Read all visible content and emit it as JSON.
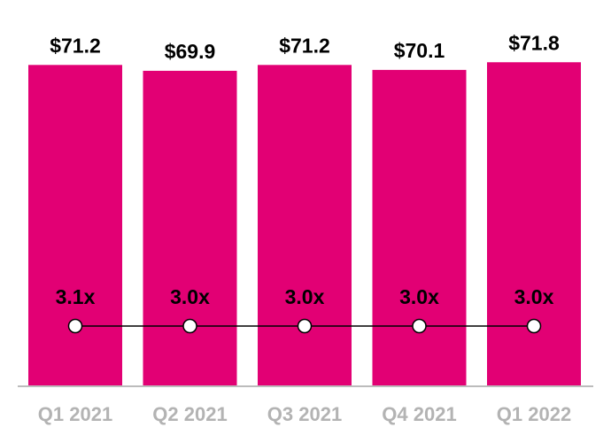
{
  "chart_data": {
    "type": "bar",
    "categories": [
      "Q1 2021",
      "Q2 2021",
      "Q3 2021",
      "Q4 2021",
      "Q1 2022"
    ],
    "series": [
      {
        "type": "bar",
        "values": [
          71.2,
          69.9,
          71.2,
          70.1,
          71.8
        ],
        "data_labels": [
          "$71.2",
          "$69.9",
          "$71.2",
          "$70.1",
          "$71.8"
        ]
      },
      {
        "type": "line",
        "values": [
          3.1,
          3.0,
          3.0,
          3.0,
          3.0
        ],
        "data_labels": [
          "3.1x",
          "3.0x",
          "3.0x",
          "3.0x",
          "3.0x"
        ]
      }
    ],
    "ylim": [
      0,
      80
    ],
    "grid": false,
    "legend": "none"
  },
  "colors": {
    "bar": "#e20074",
    "line": "#000000",
    "marker_fill": "#ffffff",
    "axis": "#a6a6a6",
    "tick_label": "#b3b3b3"
  }
}
